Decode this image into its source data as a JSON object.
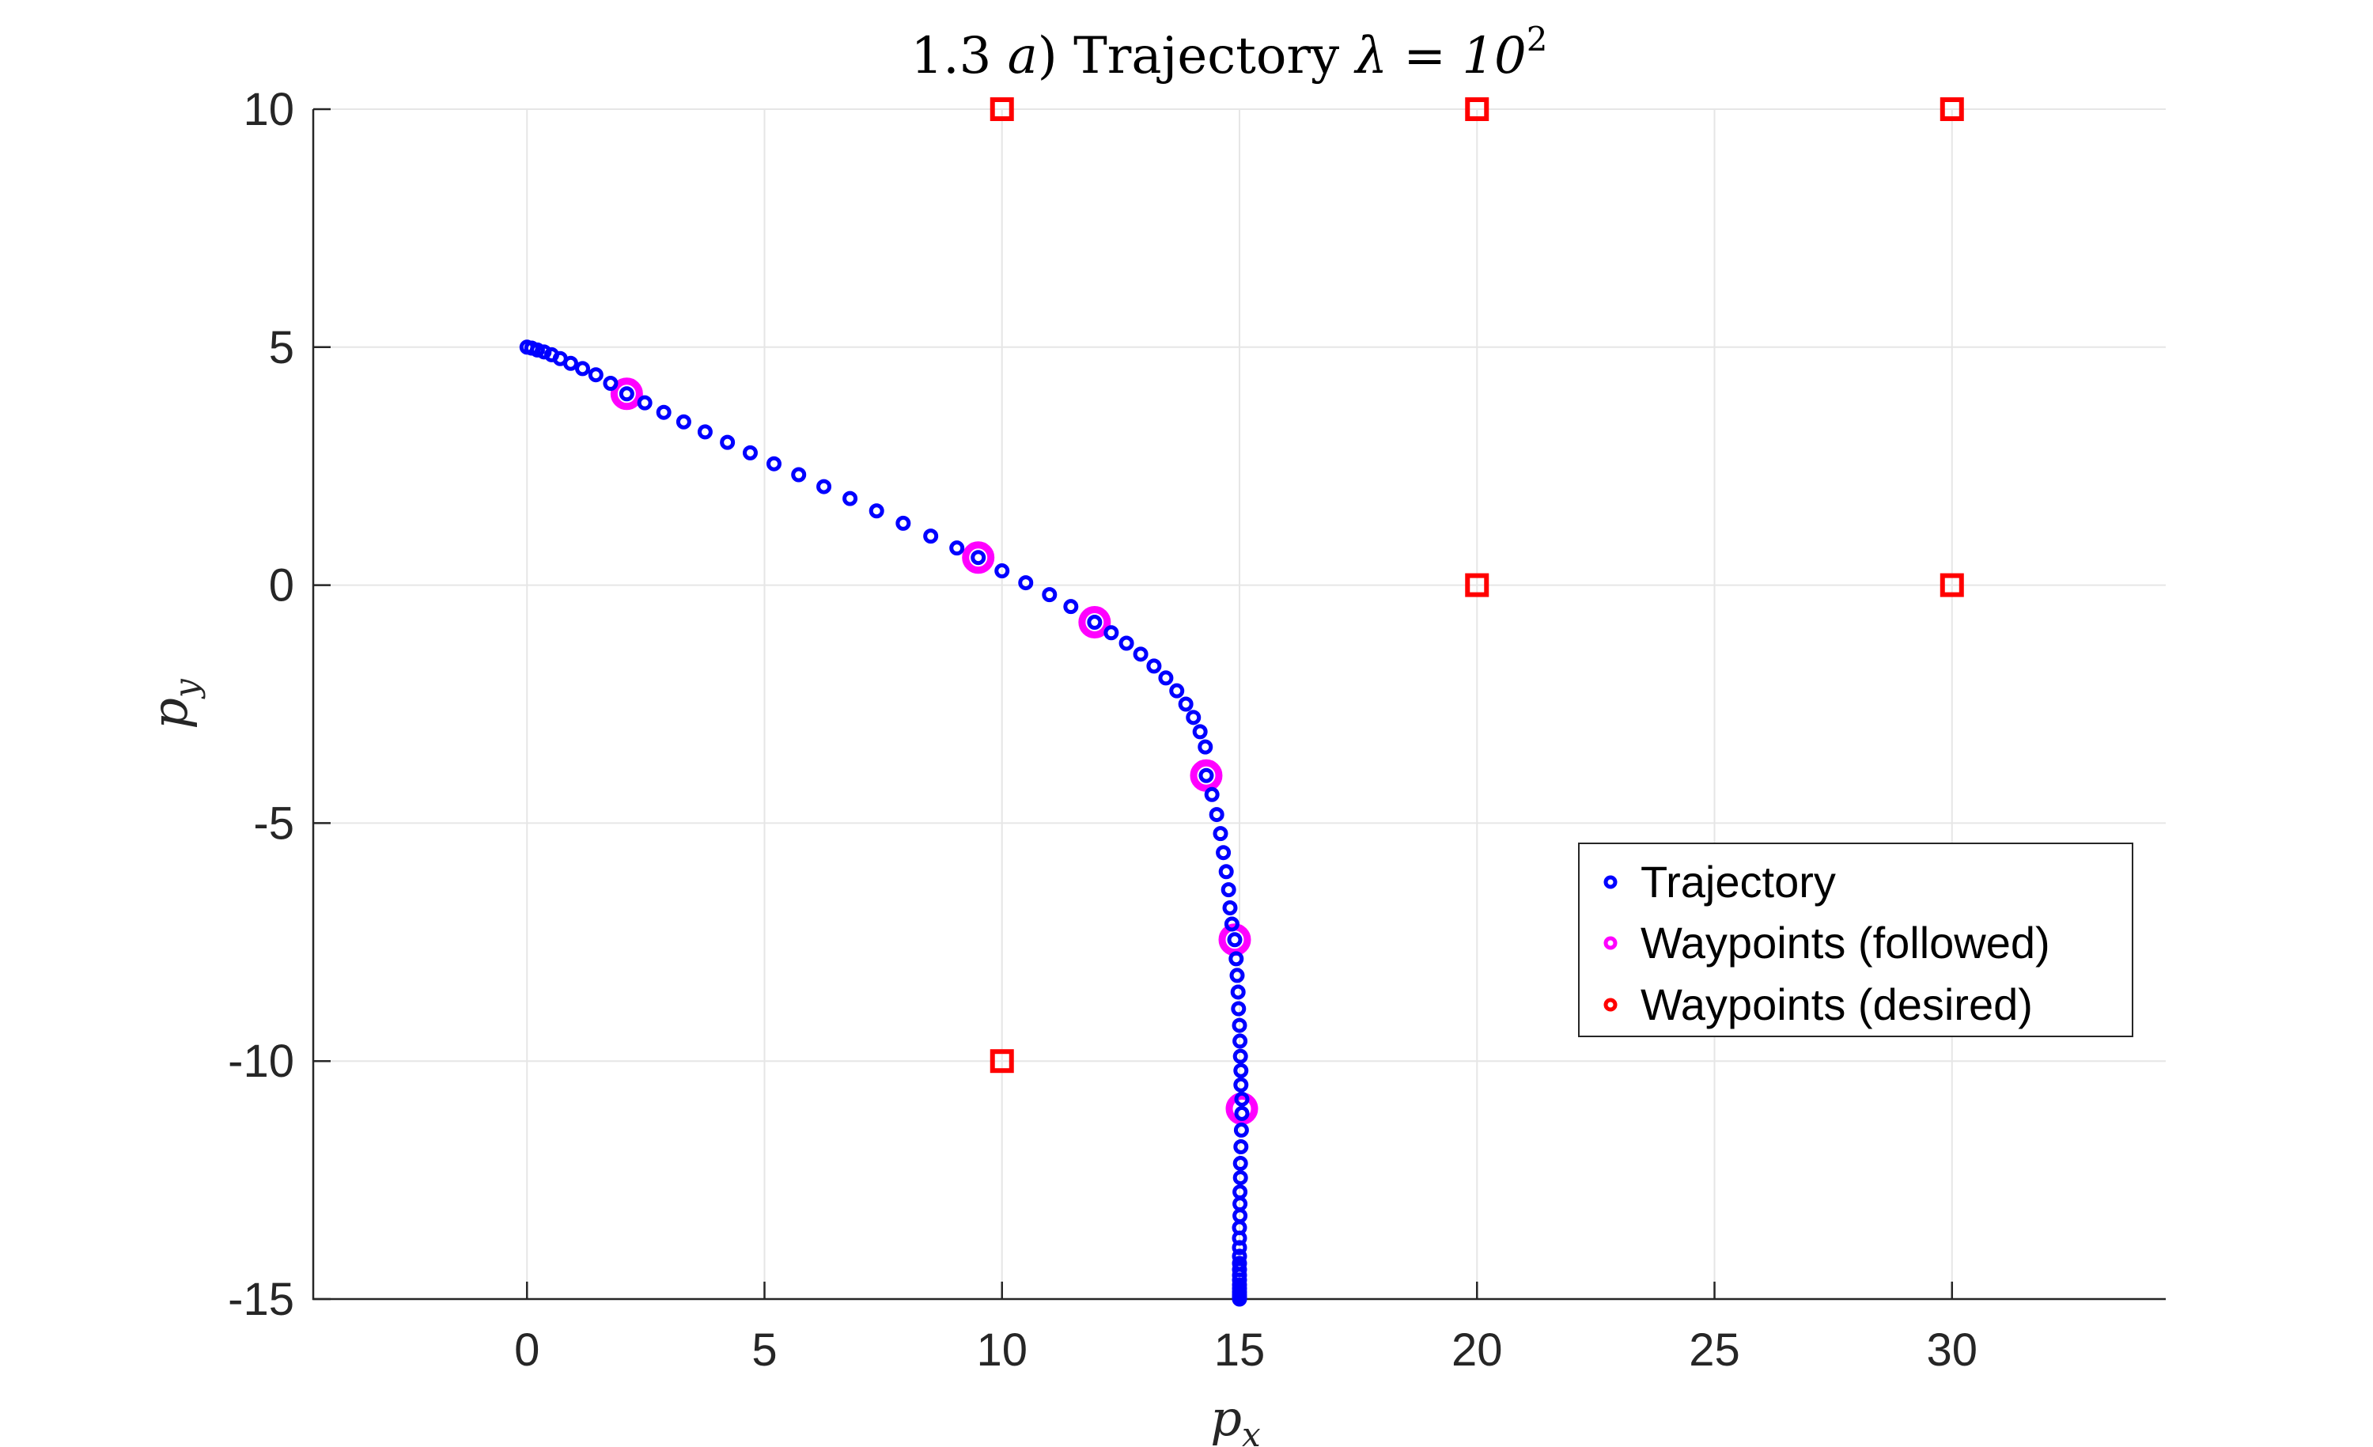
{
  "chart_data": {
    "type": "scatter",
    "title": {
      "prefix": "1.3 ",
      "italic_part": "a",
      "rest": ") Trajectory ",
      "lambda": "λ = 10",
      "superscript": "2"
    },
    "xlabel": {
      "base": "p",
      "sub": "x"
    },
    "ylabel": {
      "base": "p",
      "sub": "y"
    },
    "xlim": [
      -4.5,
      34.5
    ],
    "ylim": [
      -15,
      10
    ],
    "xticks": [
      0,
      5,
      10,
      15,
      20,
      25,
      30
    ],
    "yticks": [
      10,
      5,
      0,
      -5,
      -10,
      -15
    ],
    "xtick_labels": [
      "0",
      "5",
      "10",
      "15",
      "20",
      "25",
      "30"
    ],
    "ytick_labels": [
      "10",
      "5",
      "0",
      "-5",
      "-10",
      "-15"
    ],
    "grid": true,
    "legend_position": "right",
    "series": [
      {
        "name": "Trajectory",
        "color": "#0000ff",
        "marker": "circle",
        "points": [
          [
            0.0,
            5.0
          ],
          [
            0.1,
            4.98
          ],
          [
            0.22,
            4.94
          ],
          [
            0.36,
            4.9
          ],
          [
            0.52,
            4.84
          ],
          [
            0.7,
            4.76
          ],
          [
            0.92,
            4.66
          ],
          [
            1.17,
            4.55
          ],
          [
            1.45,
            4.42
          ],
          [
            1.76,
            4.24
          ],
          [
            2.1,
            4.02
          ],
          [
            2.48,
            3.83
          ],
          [
            2.88,
            3.63
          ],
          [
            3.3,
            3.43
          ],
          [
            3.75,
            3.22
          ],
          [
            4.22,
            3.0
          ],
          [
            4.7,
            2.78
          ],
          [
            5.2,
            2.55
          ],
          [
            5.72,
            2.32
          ],
          [
            6.25,
            2.07
          ],
          [
            6.8,
            1.82
          ],
          [
            7.36,
            1.56
          ],
          [
            7.92,
            1.3
          ],
          [
            8.5,
            1.03
          ],
          [
            9.05,
            0.78
          ],
          [
            9.5,
            0.58
          ],
          [
            10.0,
            0.3
          ],
          [
            10.5,
            0.05
          ],
          [
            11.0,
            -0.2
          ],
          [
            11.45,
            -0.45
          ],
          [
            11.95,
            -0.78
          ],
          [
            12.3,
            -1.0
          ],
          [
            12.62,
            -1.22
          ],
          [
            12.92,
            -1.45
          ],
          [
            13.2,
            -1.7
          ],
          [
            13.45,
            -1.95
          ],
          [
            13.68,
            -2.22
          ],
          [
            13.87,
            -2.5
          ],
          [
            14.03,
            -2.78
          ],
          [
            14.17,
            -3.08
          ],
          [
            14.28,
            -3.4
          ],
          [
            14.3,
            -4.0
          ],
          [
            14.42,
            -4.4
          ],
          [
            14.52,
            -4.82
          ],
          [
            14.6,
            -5.22
          ],
          [
            14.66,
            -5.62
          ],
          [
            14.72,
            -6.02
          ],
          [
            14.77,
            -6.4
          ],
          [
            14.8,
            -6.78
          ],
          [
            14.84,
            -7.12
          ],
          [
            14.9,
            -7.45
          ],
          [
            14.93,
            -7.85
          ],
          [
            14.95,
            -8.2
          ],
          [
            14.97,
            -8.55
          ],
          [
            14.98,
            -8.9
          ],
          [
            15.0,
            -9.25
          ],
          [
            15.01,
            -9.58
          ],
          [
            15.02,
            -9.9
          ],
          [
            15.03,
            -10.2
          ],
          [
            15.03,
            -10.5
          ],
          [
            15.05,
            -10.8
          ],
          [
            15.05,
            -11.1
          ],
          [
            15.04,
            -11.45
          ],
          [
            15.03,
            -11.8
          ],
          [
            15.02,
            -12.15
          ],
          [
            15.02,
            -12.45
          ],
          [
            15.01,
            -12.75
          ],
          [
            15.01,
            -13.0
          ],
          [
            15.01,
            -13.25
          ],
          [
            15.0,
            -13.5
          ],
          [
            15.0,
            -13.72
          ],
          [
            15.0,
            -13.92
          ],
          [
            15.0,
            -14.1
          ],
          [
            15.0,
            -14.25
          ],
          [
            15.0,
            -14.38
          ],
          [
            15.0,
            -14.5
          ],
          [
            15.0,
            -14.6
          ],
          [
            15.0,
            -14.7
          ],
          [
            15.0,
            -14.78
          ],
          [
            15.0,
            -14.85
          ],
          [
            15.0,
            -14.91
          ],
          [
            15.0,
            -14.96
          ],
          [
            15.0,
            -15.0
          ]
        ]
      },
      {
        "name": "Waypoints (followed)",
        "color": "#ff00ff",
        "marker": "circle",
        "points": [
          [
            2.1,
            4.02
          ],
          [
            9.5,
            0.58
          ],
          [
            11.95,
            -0.78
          ],
          [
            14.3,
            -4.0
          ],
          [
            14.9,
            -7.45
          ],
          [
            15.05,
            -11.0
          ]
        ]
      },
      {
        "name": "Waypoints (desired)",
        "color": "#ff0000",
        "marker": "square",
        "points": [
          [
            10,
            10
          ],
          [
            20,
            10
          ],
          [
            30,
            10
          ],
          [
            20,
            0
          ],
          [
            30,
            0
          ],
          [
            10,
            -10
          ]
        ]
      }
    ]
  }
}
